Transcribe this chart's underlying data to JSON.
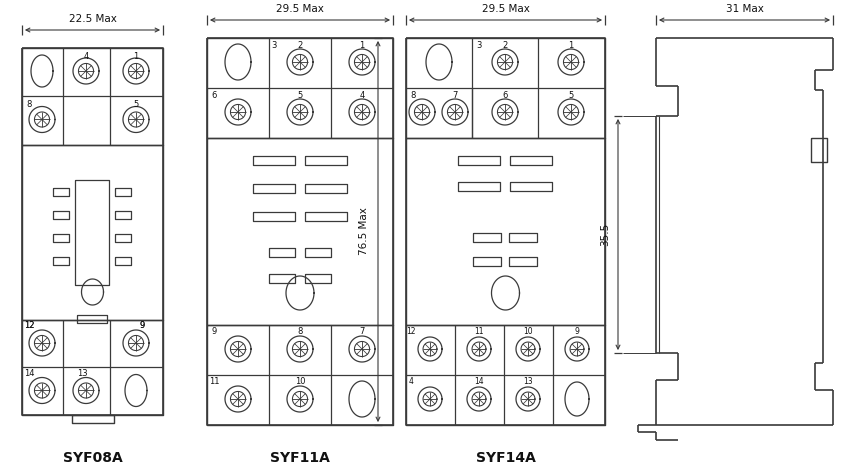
{
  "bg_color": "#ffffff",
  "line_color": "#3a3a3a",
  "labels": {
    "syf08a": "SYF08A",
    "syf11a": "SYF11A",
    "syf14a": "SYF14A",
    "dim_08a": "22.5 Max",
    "dim_11a": "29.5 Max",
    "dim_14a": "29.5 Max",
    "dim_side": "31 Max",
    "dim_35": "35.5",
    "dim_76": "76.5 Max"
  }
}
